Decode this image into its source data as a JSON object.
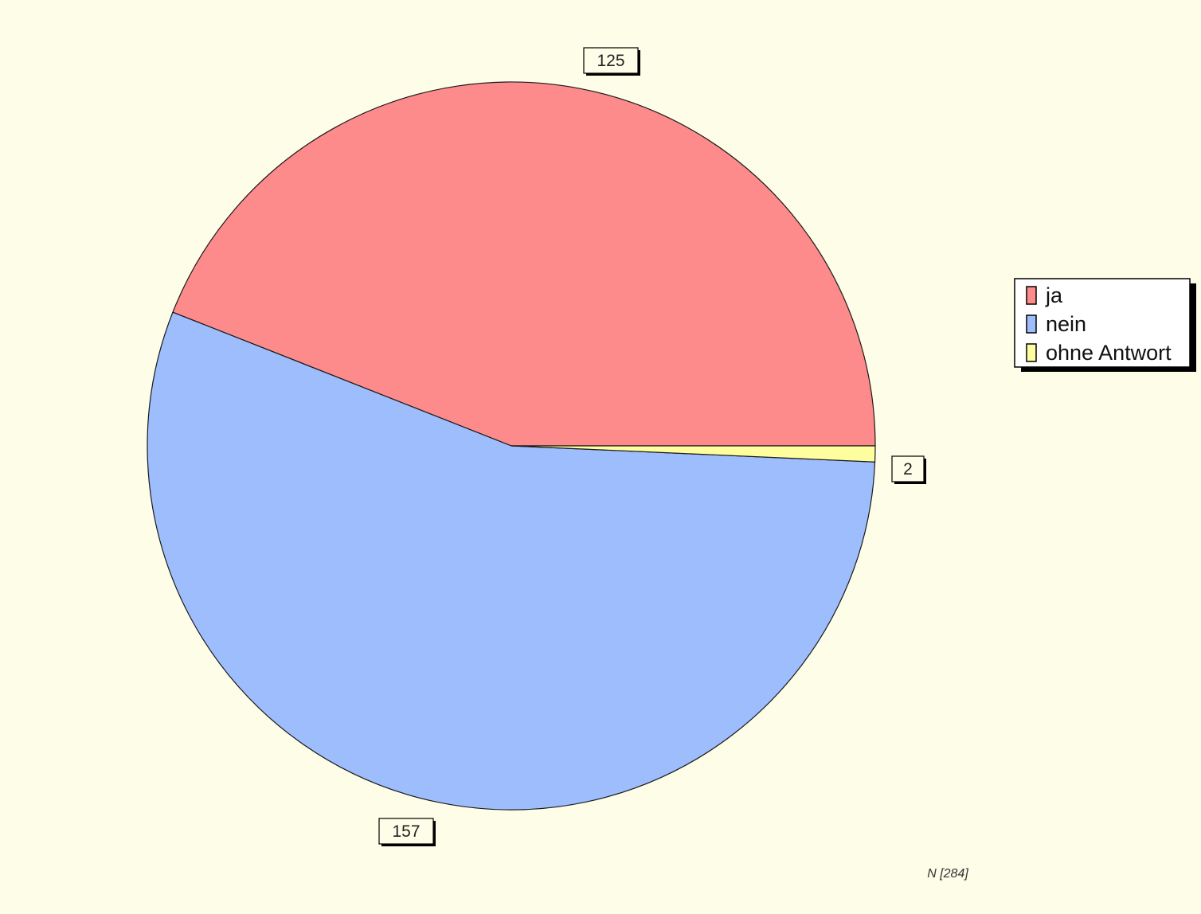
{
  "chart_data": {
    "type": "pie",
    "categories": [
      "ja",
      "nein",
      "ohne Antwort"
    ],
    "values": [
      125,
      157,
      2
    ],
    "colors": [
      "#fe8b8b",
      "#9ebdfd",
      "#fefe9e"
    ],
    "data_labels": [
      "125",
      "157",
      "2"
    ],
    "legend": {
      "placement": "right",
      "entries": [
        "ja",
        "nein",
        "ohne Antwort"
      ]
    },
    "note": "N [284]",
    "background": "#fefde8"
  }
}
